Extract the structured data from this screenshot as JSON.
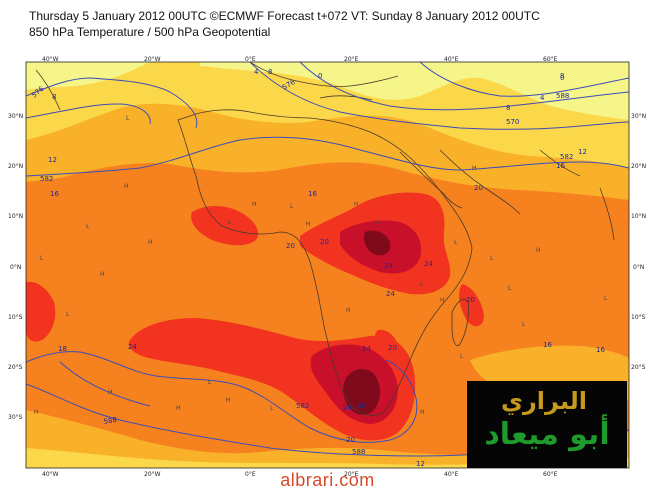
{
  "header": {
    "line1": "Thursday 5 January 2012 00UTC ©ECMWF Forecast t+072 VT: Sunday 8 January 2012 00UTC",
    "line2": "850 hPa Temperature / 500 hPa Geopotential"
  },
  "axes": {
    "lon_ticks": [
      "40°W",
      "20°W",
      "0°E",
      "20°E",
      "40°E",
      "60°E"
    ],
    "lat_ticks": [
      "30°N",
      "20°N",
      "10°N",
      "0°N",
      "10°S",
      "20°S",
      "30°S"
    ]
  },
  "contour_labels": [
    "576",
    "8",
    "4",
    "8",
    "576",
    "0",
    "4",
    "8",
    "570",
    "8",
    "12",
    "582",
    "16",
    "12",
    "582",
    "16",
    "16",
    "20",
    "20",
    "20",
    "24",
    "24",
    "24",
    "20",
    "18",
    "24",
    "24",
    "20",
    "582",
    "24",
    "20",
    "20",
    "588",
    "588",
    "12",
    "16",
    "16",
    "0",
    "588"
  ],
  "pressure_marks": [
    "L",
    "H",
    "L",
    "H",
    "H",
    "L",
    "H",
    "L",
    "H",
    "L",
    "H",
    "L",
    "H",
    "L",
    "H",
    "L",
    "L",
    "L",
    "H",
    "H",
    "L",
    "L",
    "H",
    "H",
    "L",
    "H",
    "H",
    "H",
    "L",
    "L",
    "L"
  ],
  "colors": {
    "band_yellow_light": "#f5f58a",
    "band_yellow": "#fbd84a",
    "band_gold": "#f9b129",
    "band_orange": "#f6821f",
    "band_red": "#f2331f",
    "band_crimson": "#c9102a",
    "band_dark": "#7f0a1c",
    "contour": "#3c4cb8",
    "coast": "#4a3a2a"
  },
  "logo": {
    "line1": "البراري",
    "line2": "أبو ميعاد"
  },
  "footer": {
    "site": "albrari.com"
  }
}
